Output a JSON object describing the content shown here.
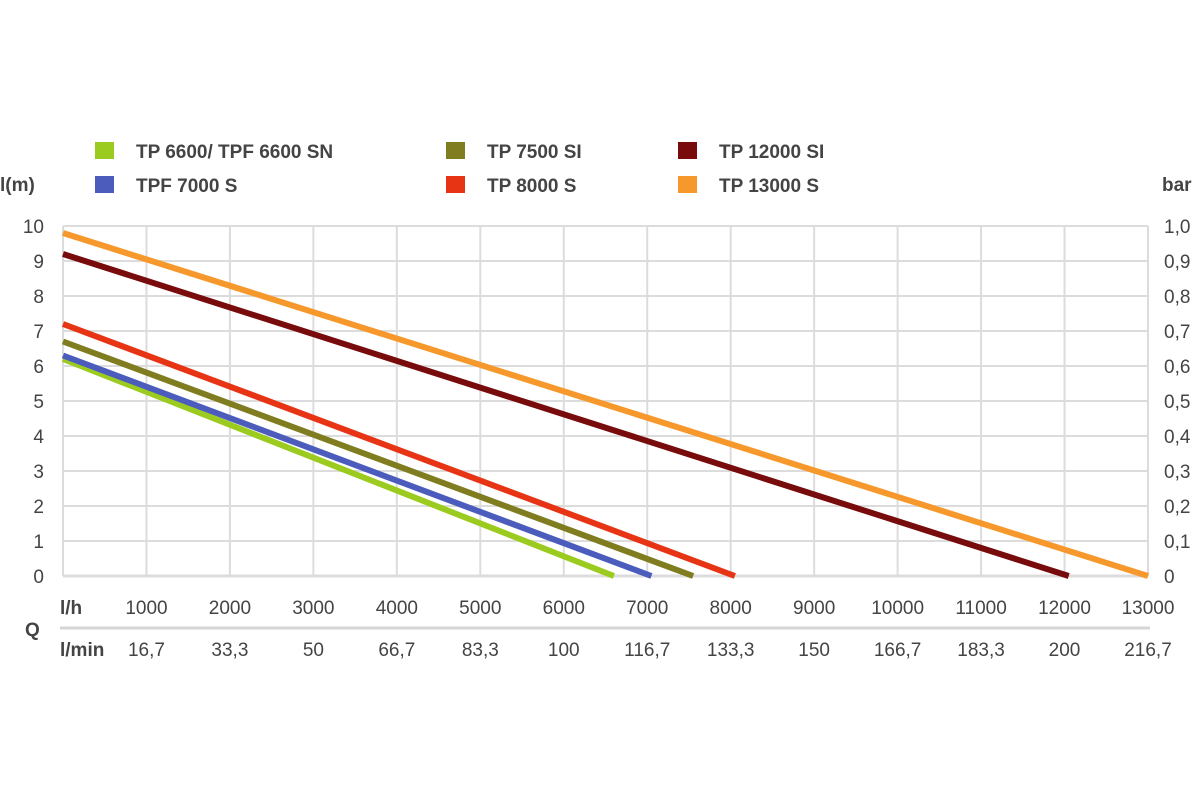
{
  "chart_data": {
    "type": "line",
    "ylabel_left": "l(m)",
    "ylabel_right": "bar",
    "xlabel": "Q",
    "x_unit_top": "l/h",
    "x_unit_bottom": "l/min",
    "xlim": [
      0,
      13000
    ],
    "ylim": [
      0,
      10
    ],
    "ylim_right": [
      0,
      1.0
    ],
    "grid": true,
    "legend_position": "top",
    "y_ticks": [
      "0",
      "1",
      "2",
      "3",
      "4",
      "5",
      "6",
      "7",
      "8",
      "9",
      "10"
    ],
    "y_ticks_right": [
      "0",
      "0,1",
      "0,2",
      "0,3",
      "0,4",
      "0,5",
      "0,6",
      "0,7",
      "0,8",
      "0,9",
      "1,0"
    ],
    "x_ticks_lh": [
      "1000",
      "2000",
      "3000",
      "4000",
      "5000",
      "6000",
      "7000",
      "8000",
      "9000",
      "10000",
      "11000",
      "12000",
      "13000"
    ],
    "x_ticks_lmin": [
      "16,7",
      "33,3",
      "50",
      "66,7",
      "83,3",
      "100",
      "116,7",
      "133,3",
      "150",
      "166,7",
      "183,3",
      "200",
      "216,7"
    ],
    "series": [
      {
        "name": "TP 6600/ TPF 6600 SN",
        "color": "#9bcb1f",
        "x": [
          0,
          6600
        ],
        "y": [
          6.2,
          0
        ]
      },
      {
        "name": "TPF 7000 S",
        "color": "#4b5cbd",
        "x": [
          0,
          7050
        ],
        "y": [
          6.3,
          0
        ]
      },
      {
        "name": "TP 7500 SI",
        "color": "#7f7d1f",
        "x": [
          0,
          7550
        ],
        "y": [
          6.7,
          0
        ]
      },
      {
        "name": "TP 8000 S",
        "color": "#e63414",
        "x": [
          0,
          8050
        ],
        "y": [
          7.2,
          0
        ]
      },
      {
        "name": "TP 12000 SI",
        "color": "#780b0b",
        "x": [
          0,
          12050
        ],
        "y": [
          9.2,
          0
        ]
      },
      {
        "name": "TP 13000 S",
        "color": "#f7982c",
        "x": [
          0,
          13000
        ],
        "y": [
          9.8,
          0
        ]
      }
    ]
  }
}
